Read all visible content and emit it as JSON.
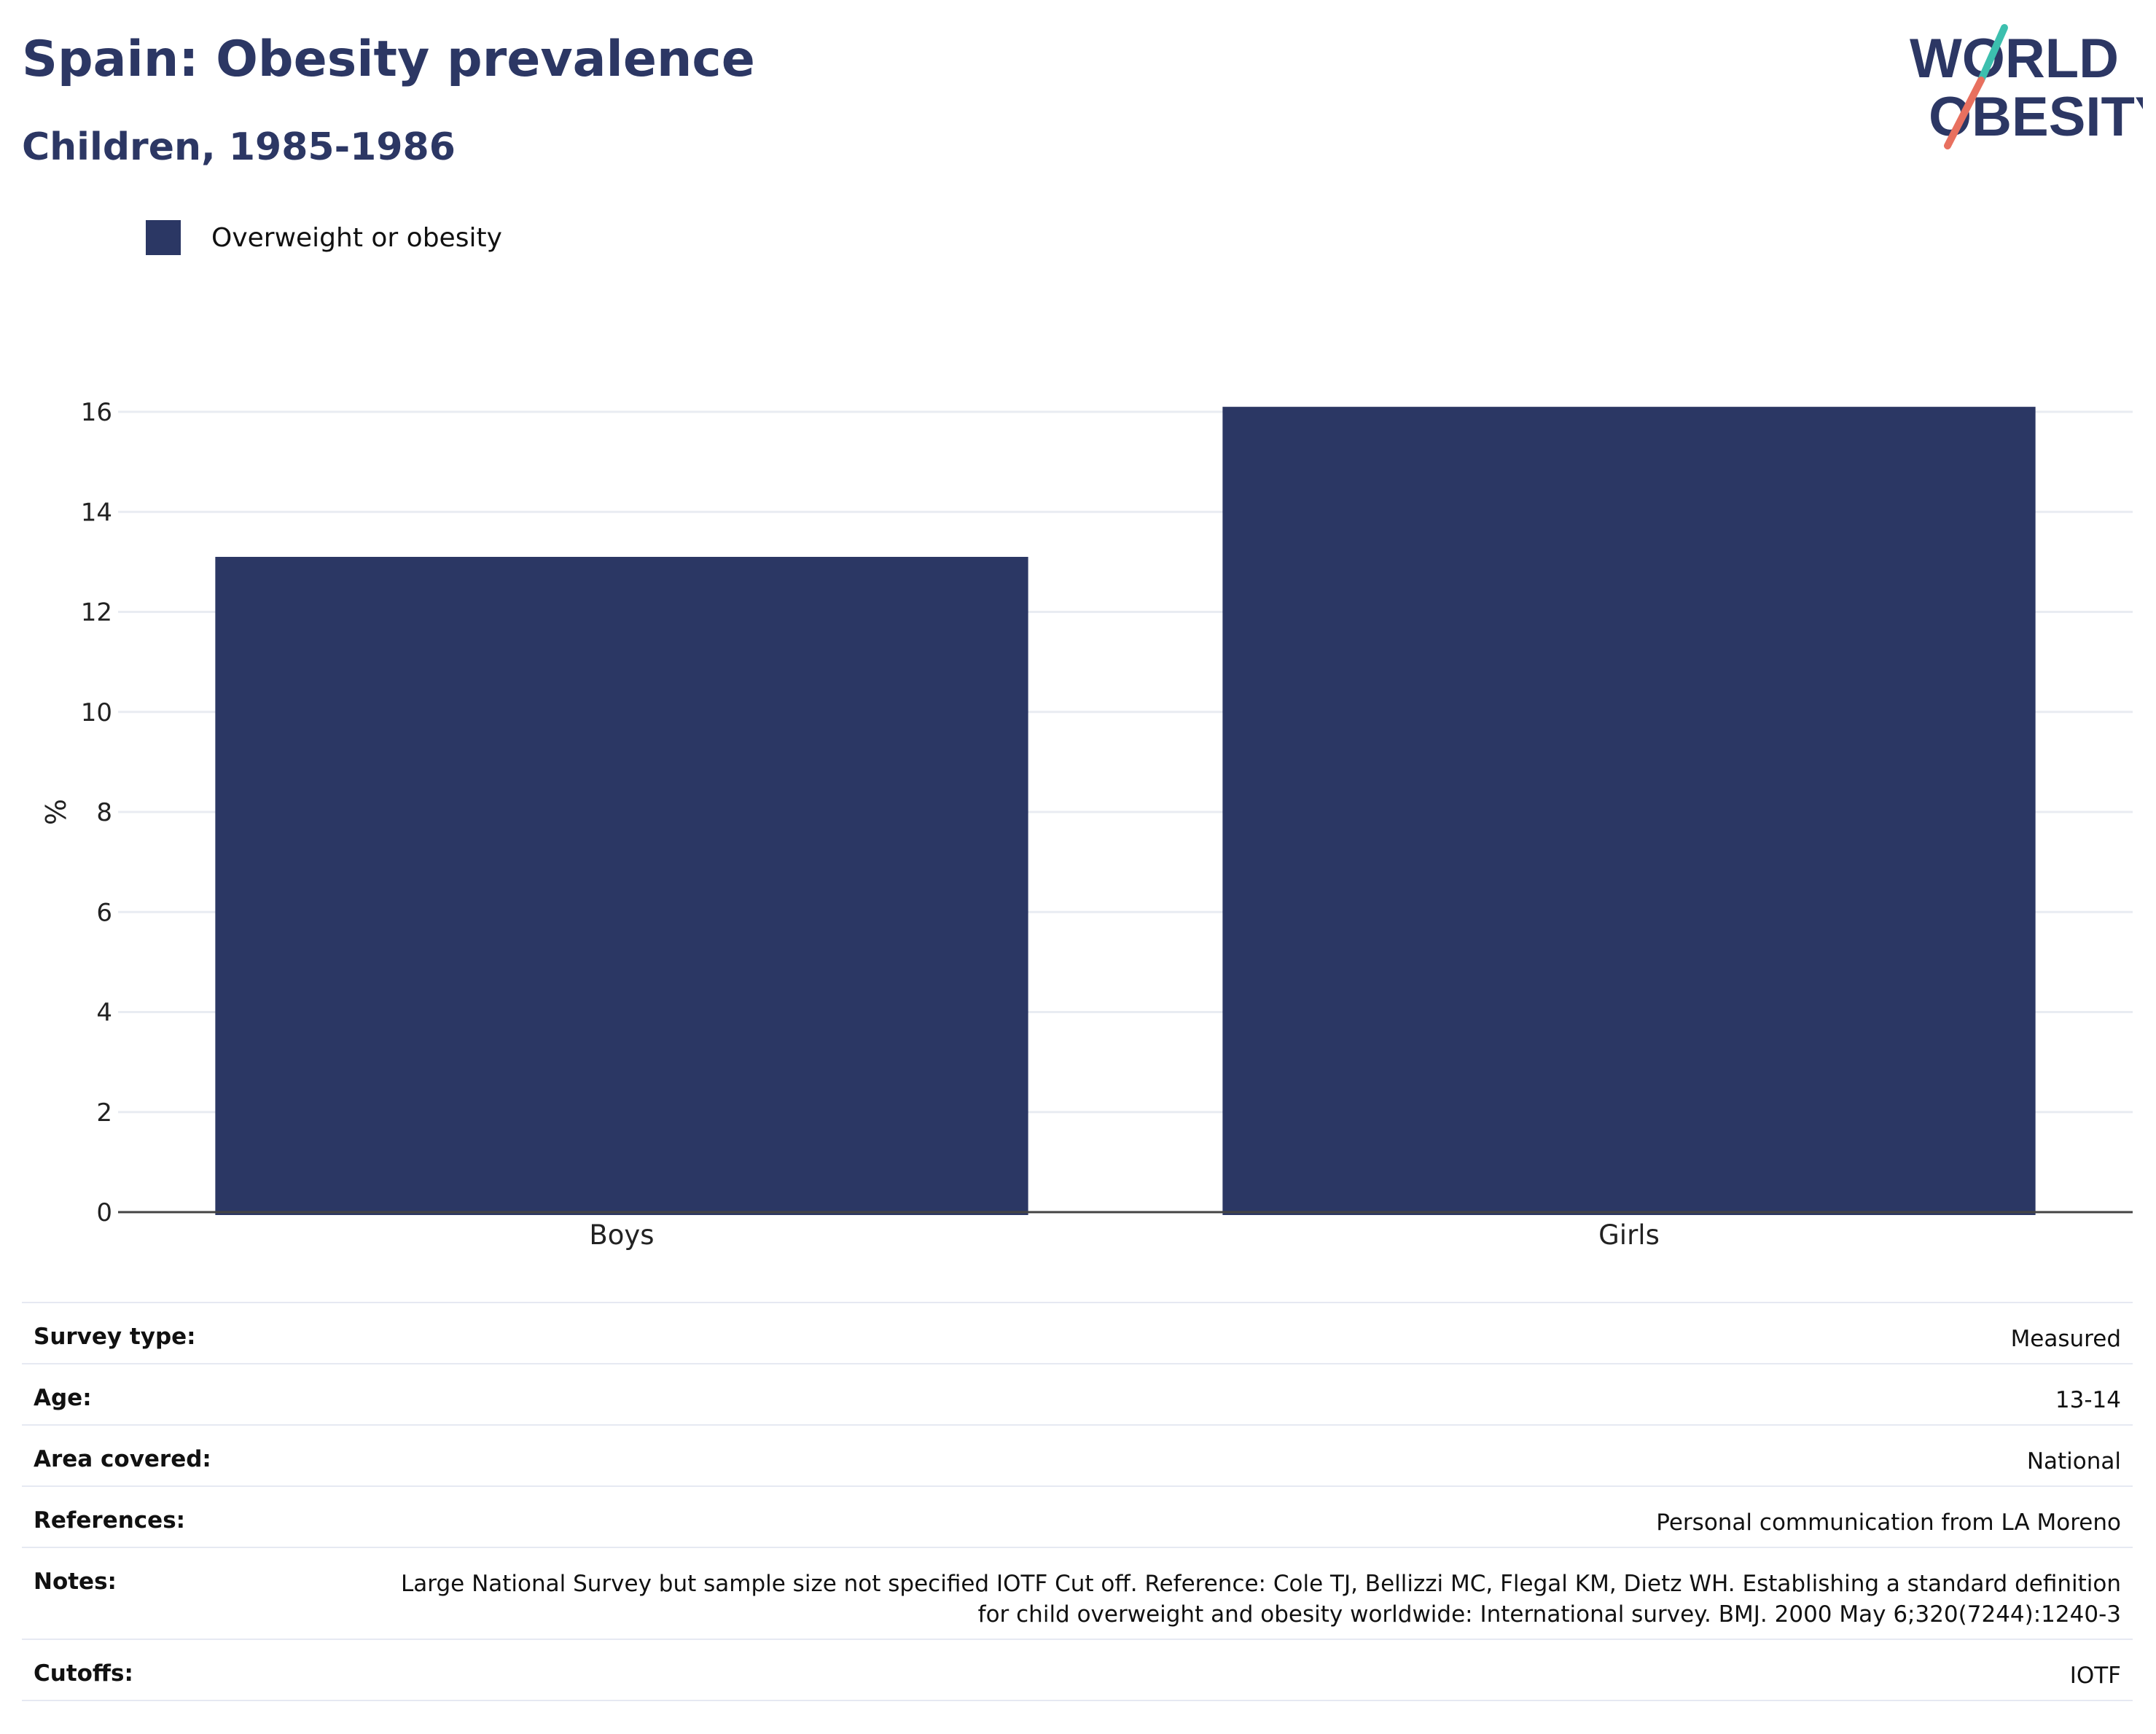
{
  "header": {
    "title": "Spain: Obesity prevalence",
    "subtitle": "Children, 1985-1986",
    "logo_text_line1": "WORLD",
    "logo_text_line2": "OBESITY"
  },
  "colors": {
    "bar": "#2b3764",
    "title": "#2c3764",
    "logo_text": "#2c3764",
    "logo_teal": "#3cbfae",
    "logo_coral": "#e8705f",
    "grid": "#e9ecf2",
    "axis": "#444444"
  },
  "legend": {
    "label": "Overweight or obesity"
  },
  "chart_data": {
    "type": "bar",
    "categories": [
      "Boys",
      "Girls"
    ],
    "series": [
      {
        "name": "Overweight or obesity",
        "values": [
          13.1,
          16.1
        ]
      }
    ],
    "title": "Spain: Obesity prevalence",
    "subtitle": "Children, 1985-1986",
    "xlabel": "",
    "ylabel": "%",
    "ylim": [
      0,
      16.5
    ],
    "yticks": [
      0,
      2,
      4,
      6,
      8,
      10,
      12,
      14,
      16
    ],
    "grid": true,
    "legend_position": "top-left"
  },
  "meta": {
    "rows": [
      {
        "label": "Survey type:",
        "value": "Measured"
      },
      {
        "label": "Age:",
        "value": "13-14"
      },
      {
        "label": "Area covered:",
        "value": "National"
      },
      {
        "label": "References:",
        "value": "Personal communication from LA Moreno"
      },
      {
        "label": "Notes:",
        "value": "Large National Survey but sample size not specified IOTF Cut off. Reference: Cole TJ, Bellizzi MC, Flegal KM, Dietz WH. Establishing a standard definition for child overweight and obesity worldwide: International survey. BMJ. 2000 May 6;320(7244):1240-3"
      },
      {
        "label": "Cutoffs:",
        "value": "IOTF"
      }
    ]
  }
}
